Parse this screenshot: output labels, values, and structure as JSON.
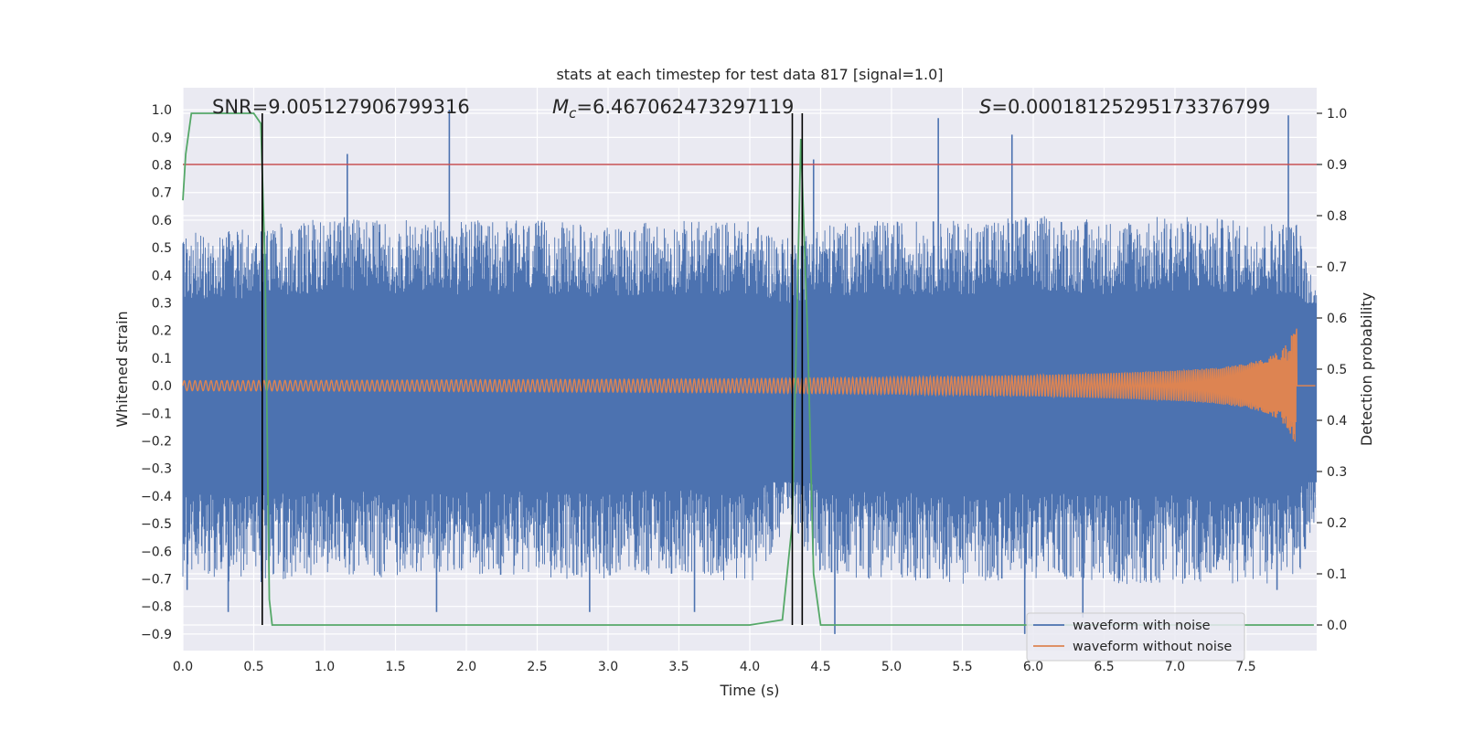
{
  "chart_data": {
    "type": "line",
    "title": "stats at each timestep for test data 817 [signal=1.0]",
    "xlabel": "Time (s)",
    "ylabel": "Whitened strain",
    "y2label": "Detection probability",
    "xlim": [
      0.0,
      8.0
    ],
    "ylim": [
      -0.96,
      1.08
    ],
    "y2lim": [
      -0.05,
      1.05
    ],
    "xticks": [
      0.0,
      0.5,
      1.0,
      1.5,
      2.0,
      2.5,
      3.0,
      3.5,
      4.0,
      4.5,
      5.0,
      5.5,
      6.0,
      6.5,
      7.0,
      7.5
    ],
    "yticks": [
      1.0,
      0.9,
      0.8,
      0.7,
      0.6,
      0.5,
      0.4,
      0.3,
      0.2,
      0.1,
      0.0,
      -0.1,
      -0.2,
      -0.3,
      -0.4,
      -0.5,
      -0.6,
      -0.7,
      -0.8,
      -0.9
    ],
    "y2ticks": [
      1.0,
      0.9,
      0.8,
      0.7,
      0.6,
      0.5,
      0.4,
      0.3,
      0.2,
      0.1,
      0.0
    ],
    "grid": true,
    "annotations": {
      "snr_label": "SNR=9.005127906799316",
      "mc_prefix": "M",
      "mc_sub": "c",
      "mc_value": "=6.467062473297119",
      "s_prefix": "S",
      "s_value": "=0.00018125295173376799"
    },
    "threshold": 0.9,
    "vlines": [
      0.56,
      4.3,
      4.37
    ],
    "legend": {
      "placement": "bottom-right",
      "entries": [
        "waveform with noise",
        "waveform without noise"
      ]
    },
    "series": [
      {
        "name": "waveform with noise",
        "color": "#4c72b0",
        "axis": "left",
        "envelope": {
          "t": [
            0.0,
            0.5,
            1.0,
            1.5,
            2.0,
            2.5,
            3.0,
            3.5,
            4.0,
            4.3,
            4.5,
            5.0,
            5.5,
            6.0,
            6.5,
            7.0,
            7.5,
            7.86,
            7.98
          ],
          "max": [
            0.56,
            0.57,
            0.62,
            0.6,
            0.6,
            0.6,
            0.58,
            0.6,
            0.6,
            0.53,
            0.59,
            0.6,
            0.6,
            0.62,
            0.6,
            0.62,
            0.6,
            0.6,
            0.38
          ],
          "min": [
            -0.7,
            -0.72,
            -0.68,
            -0.7,
            -0.68,
            -0.7,
            -0.7,
            -0.68,
            -0.72,
            -0.5,
            -0.7,
            -0.7,
            -0.72,
            -0.7,
            -0.72,
            -0.72,
            -0.72,
            -0.72,
            -0.5
          ]
        },
        "spikes": [
          {
            "t": 1.16,
            "v": 0.84
          },
          {
            "t": 1.88,
            "v": 1.0
          },
          {
            "t": 4.45,
            "v": 0.82
          },
          {
            "t": 5.33,
            "v": 0.97
          },
          {
            "t": 5.85,
            "v": 0.91
          },
          {
            "t": 7.8,
            "v": 0.98
          },
          {
            "t": 0.03,
            "v": -0.74
          },
          {
            "t": 0.32,
            "v": -0.82
          },
          {
            "t": 1.79,
            "v": -0.82
          },
          {
            "t": 2.87,
            "v": -0.82
          },
          {
            "t": 3.61,
            "v": -0.82
          },
          {
            "t": 4.6,
            "v": -0.9
          },
          {
            "t": 5.94,
            "v": -0.9
          },
          {
            "t": 6.35,
            "v": -0.84
          },
          {
            "t": 7.72,
            "v": -0.74
          }
        ]
      },
      {
        "name": "waveform without noise",
        "color": "#dd8452",
        "axis": "left",
        "amplitude": {
          "t": [
            0.0,
            1.0,
            2.0,
            3.0,
            4.0,
            4.5,
            5.0,
            5.5,
            6.0,
            6.5,
            7.0,
            7.3,
            7.5,
            7.65,
            7.75,
            7.8,
            7.84,
            7.86,
            7.87,
            7.99
          ],
          "a": [
            0.018,
            0.019,
            0.021,
            0.023,
            0.025,
            0.028,
            0.03,
            0.034,
            0.038,
            0.045,
            0.055,
            0.065,
            0.08,
            0.1,
            0.13,
            0.16,
            0.2,
            0.21,
            0.0,
            0.0
          ]
        },
        "cycles": 330
      },
      {
        "name": "detection probability",
        "color": "#55a868",
        "axis": "right",
        "x": [
          0.0,
          0.02,
          0.06,
          0.12,
          0.3,
          0.5,
          0.55,
          0.58,
          0.61,
          0.63,
          0.7,
          1.0,
          2.0,
          3.0,
          4.0,
          4.23,
          4.3,
          4.36,
          4.41,
          4.45,
          4.5,
          5.0,
          6.0,
          7.0,
          7.5,
          7.98
        ],
        "y": [
          0.83,
          0.92,
          1.0,
          1.0,
          1.0,
          1.0,
          0.98,
          0.7,
          0.05,
          0.0,
          0.0,
          0.0,
          0.0,
          0.0,
          0.0,
          0.01,
          0.2,
          0.95,
          0.55,
          0.1,
          0.0,
          0.0,
          0.0,
          0.0,
          0.0,
          0.0
        ]
      },
      {
        "name": "threshold",
        "color": "#c44e52",
        "axis": "right"
      }
    ]
  }
}
